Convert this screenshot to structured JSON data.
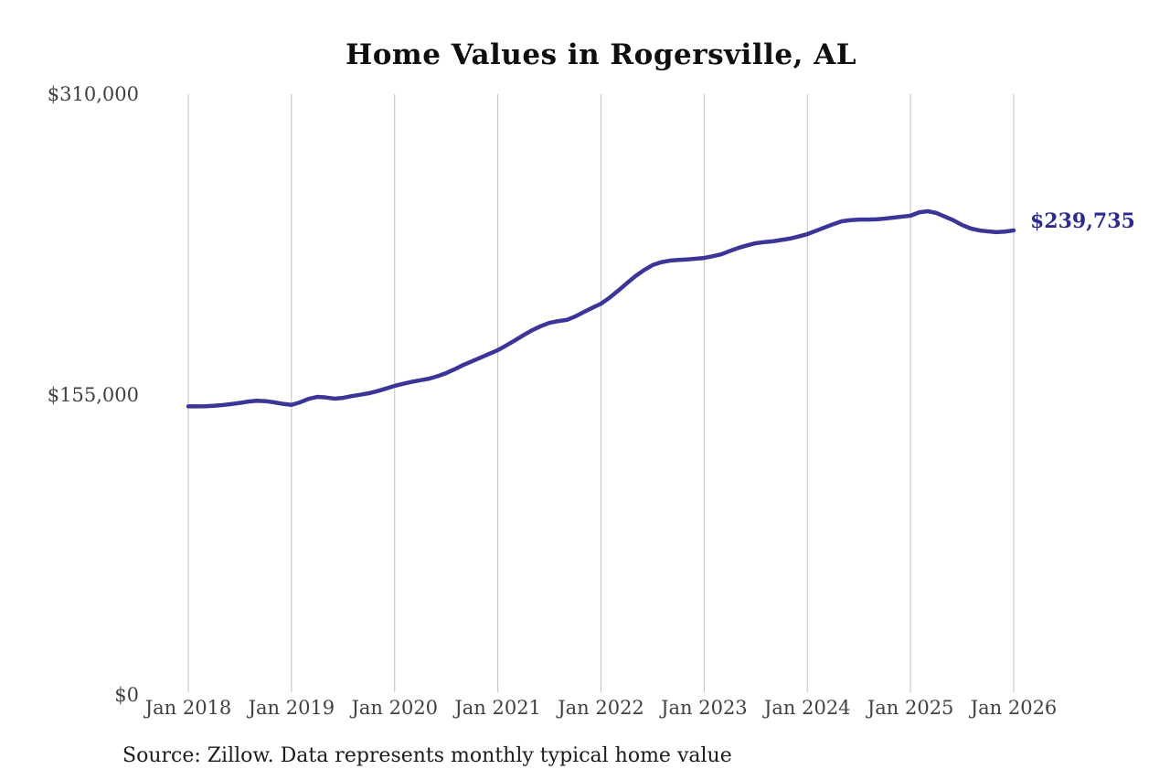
{
  "title": "Home Values in Rogersville, AL",
  "source_note": "Source: Zillow. Data represents monthly typical home value",
  "chart_data": {
    "type": "line",
    "title": "Home Values in Rogersville, AL",
    "xlabel": "",
    "ylabel": "",
    "ylim": [
      0,
      310000
    ],
    "grid": "vertical-only",
    "legend": "none",
    "line_color": "#3a3597",
    "grid_color": "#bfbfbf",
    "x_tick_labels": [
      "Jan 2018",
      "Jan 2019",
      "Jan 2020",
      "Jan 2021",
      "Jan 2022",
      "Jan 2023",
      "Jan 2024",
      "Jan 2025",
      "Jan 2026"
    ],
    "y_ticks": [
      {
        "value": 0,
        "label": "$0"
      },
      {
        "value": 155000,
        "label": "$155,000"
      },
      {
        "value": 310000,
        "label": "$310,000"
      }
    ],
    "end_label": {
      "text": "$239,735",
      "value": 239735,
      "color": "#2d2b8d"
    },
    "series": [
      {
        "name": "Monthly typical home value",
        "x_start": "Jan 2018",
        "x_end": "Jan 2026",
        "interval": "monthly",
        "values": [
          148900,
          148900,
          149000,
          149200,
          149600,
          150100,
          150700,
          151400,
          151800,
          151600,
          151000,
          150200,
          149700,
          151000,
          152800,
          153800,
          153500,
          152900,
          153300,
          154200,
          154900,
          155700,
          156800,
          158100,
          159500,
          160600,
          161600,
          162400,
          163200,
          164500,
          166100,
          168100,
          170300,
          172200,
          174100,
          176000,
          177900,
          180400,
          183000,
          185700,
          188200,
          190300,
          192000,
          192900,
          193500,
          195300,
          197600,
          199800,
          201900,
          205000,
          208600,
          212400,
          216100,
          219200,
          221800,
          223300,
          224100,
          224500,
          224700,
          225100,
          225500,
          226400,
          227400,
          229100,
          230700,
          232000,
          233100,
          233700,
          234100,
          234800,
          235500,
          236600,
          237800,
          239500,
          241200,
          242900,
          244400,
          245000,
          245300,
          245300,
          245400,
          245800,
          246300,
          246800,
          247300,
          249000,
          249600,
          248700,
          246800,
          244900,
          242500,
          240700,
          239700,
          239200,
          238800,
          239100,
          239735
        ]
      }
    ]
  }
}
